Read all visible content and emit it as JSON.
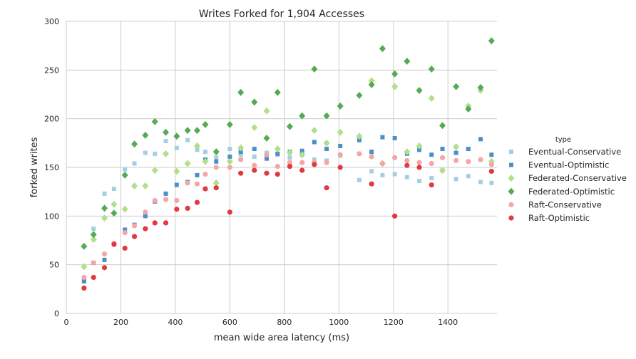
{
  "chart_data": {
    "type": "scatter",
    "title": "Writes Forked for 1,904 Accesses",
    "xlabel": "mean wide area latency (ms)",
    "ylabel": "forked writes",
    "xlim": [
      0,
      1580
    ],
    "ylim": [
      0,
      300
    ],
    "xticks": [
      0,
      200,
      400,
      600,
      800,
      1000,
      1200,
      1400
    ],
    "yticks": [
      0,
      50,
      100,
      150,
      200,
      250,
      300
    ],
    "grid": true,
    "legend_title": "type",
    "legend_position": "right",
    "series": [
      {
        "name": "Eventual-Conservative",
        "marker": "square",
        "color": "#a6cee3",
        "points": [
          [
            65,
            35
          ],
          [
            100,
            87
          ],
          [
            140,
            123
          ],
          [
            175,
            128
          ],
          [
            215,
            148
          ],
          [
            250,
            154
          ],
          [
            290,
            165
          ],
          [
            325,
            164
          ],
          [
            365,
            177
          ],
          [
            405,
            170
          ],
          [
            445,
            178
          ],
          [
            480,
            168
          ],
          [
            510,
            166
          ],
          [
            550,
            160
          ],
          [
            600,
            169
          ],
          [
            640,
            163
          ],
          [
            690,
            161
          ],
          [
            735,
            165
          ],
          [
            775,
            163
          ],
          [
            820,
            160
          ],
          [
            865,
            163
          ],
          [
            910,
            158
          ],
          [
            955,
            157
          ],
          [
            1005,
            162
          ],
          [
            1075,
            137
          ],
          [
            1120,
            146
          ],
          [
            1160,
            142
          ],
          [
            1205,
            143
          ],
          [
            1250,
            140
          ],
          [
            1295,
            136
          ],
          [
            1340,
            139
          ],
          [
            1380,
            147
          ],
          [
            1430,
            138
          ],
          [
            1475,
            141
          ],
          [
            1520,
            135
          ],
          [
            1560,
            134
          ]
        ]
      },
      {
        "name": "Eventual-Optimistic",
        "marker": "square",
        "color": "#4a8fc7",
        "points": [
          [
            65,
            33
          ],
          [
            100,
            52
          ],
          [
            140,
            55
          ],
          [
            175,
            71
          ],
          [
            215,
            86
          ],
          [
            250,
            91
          ],
          [
            290,
            100
          ],
          [
            325,
            115
          ],
          [
            365,
            123
          ],
          [
            405,
            132
          ],
          [
            445,
            135
          ],
          [
            480,
            142
          ],
          [
            510,
            158
          ],
          [
            550,
            156
          ],
          [
            600,
            161
          ],
          [
            640,
            166
          ],
          [
            690,
            169
          ],
          [
            735,
            159
          ],
          [
            775,
            164
          ],
          [
            820,
            166
          ],
          [
            865,
            167
          ],
          [
            910,
            176
          ],
          [
            955,
            169
          ],
          [
            1005,
            172
          ],
          [
            1075,
            178
          ],
          [
            1120,
            166
          ],
          [
            1160,
            181
          ],
          [
            1205,
            180
          ],
          [
            1250,
            164
          ],
          [
            1295,
            168
          ],
          [
            1340,
            163
          ],
          [
            1380,
            169
          ],
          [
            1430,
            165
          ],
          [
            1475,
            169
          ],
          [
            1520,
            179
          ],
          [
            1560,
            163
          ]
        ]
      },
      {
        "name": "Federated-Conservative",
        "marker": "diamond",
        "color": "#b2df8a",
        "points": [
          [
            65,
            48
          ],
          [
            100,
            76
          ],
          [
            140,
            98
          ],
          [
            175,
            112
          ],
          [
            215,
            107
          ],
          [
            250,
            131
          ],
          [
            290,
            131
          ],
          [
            325,
            147
          ],
          [
            365,
            164
          ],
          [
            405,
            146
          ],
          [
            445,
            154
          ],
          [
            480,
            172
          ],
          [
            510,
            156
          ],
          [
            550,
            134
          ],
          [
            600,
            156
          ],
          [
            640,
            170
          ],
          [
            690,
            191
          ],
          [
            735,
            208
          ],
          [
            775,
            169
          ],
          [
            820,
            165
          ],
          [
            865,
            163
          ],
          [
            910,
            188
          ],
          [
            955,
            175
          ],
          [
            1005,
            186
          ],
          [
            1075,
            182
          ],
          [
            1120,
            239
          ],
          [
            1160,
            154
          ],
          [
            1205,
            233
          ],
          [
            1250,
            166
          ],
          [
            1295,
            172
          ],
          [
            1340,
            221
          ],
          [
            1380,
            147
          ],
          [
            1430,
            171
          ],
          [
            1475,
            213
          ],
          [
            1520,
            229
          ],
          [
            1560,
            156
          ]
        ]
      },
      {
        "name": "Federated-Optimistic",
        "marker": "diamond",
        "color": "#55aa55",
        "points": [
          [
            65,
            69
          ],
          [
            100,
            81
          ],
          [
            140,
            108
          ],
          [
            175,
            103
          ],
          [
            215,
            142
          ],
          [
            250,
            174
          ],
          [
            290,
            183
          ],
          [
            325,
            197
          ],
          [
            365,
            186
          ],
          [
            405,
            182
          ],
          [
            445,
            188
          ],
          [
            480,
            188
          ],
          [
            510,
            194
          ],
          [
            550,
            166
          ],
          [
            600,
            194
          ],
          [
            640,
            227
          ],
          [
            690,
            217
          ],
          [
            735,
            180
          ],
          [
            775,
            227
          ],
          [
            820,
            192
          ],
          [
            865,
            203
          ],
          [
            910,
            251
          ],
          [
            955,
            203
          ],
          [
            1005,
            213
          ],
          [
            1075,
            224
          ],
          [
            1120,
            235
          ],
          [
            1160,
            272
          ],
          [
            1205,
            246
          ],
          [
            1250,
            259
          ],
          [
            1295,
            229
          ],
          [
            1340,
            251
          ],
          [
            1380,
            193
          ],
          [
            1430,
            233
          ],
          [
            1475,
            210
          ],
          [
            1520,
            232
          ],
          [
            1560,
            280
          ]
        ]
      },
      {
        "name": "Raft-Conservative",
        "marker": "circle",
        "color": "#f4a6a6",
        "points": [
          [
            65,
            37
          ],
          [
            100,
            52
          ],
          [
            140,
            61
          ],
          [
            175,
            72
          ],
          [
            215,
            83
          ],
          [
            250,
            90
          ],
          [
            290,
            104
          ],
          [
            325,
            116
          ],
          [
            365,
            117
          ],
          [
            405,
            116
          ],
          [
            445,
            134
          ],
          [
            480,
            133
          ],
          [
            510,
            143
          ],
          [
            550,
            150
          ],
          [
            600,
            150
          ],
          [
            640,
            158
          ],
          [
            690,
            152
          ],
          [
            735,
            163
          ],
          [
            775,
            151
          ],
          [
            820,
            155
          ],
          [
            865,
            155
          ],
          [
            910,
            155
          ],
          [
            955,
            155
          ],
          [
            1005,
            163
          ],
          [
            1075,
            164
          ],
          [
            1120,
            161
          ],
          [
            1160,
            154
          ],
          [
            1205,
            160
          ],
          [
            1250,
            157
          ],
          [
            1295,
            155
          ],
          [
            1340,
            154
          ],
          [
            1380,
            160
          ],
          [
            1430,
            157
          ],
          [
            1475,
            156
          ],
          [
            1520,
            158
          ],
          [
            1560,
            153
          ]
        ]
      },
      {
        "name": "Raft-Optimistic",
        "marker": "circle",
        "color": "#e0393e",
        "points": [
          [
            65,
            26
          ],
          [
            100,
            37
          ],
          [
            140,
            47
          ],
          [
            175,
            71
          ],
          [
            215,
            67
          ],
          [
            250,
            79
          ],
          [
            290,
            87
          ],
          [
            325,
            93
          ],
          [
            365,
            93
          ],
          [
            405,
            107
          ],
          [
            445,
            108
          ],
          [
            480,
            114
          ],
          [
            510,
            128
          ],
          [
            550,
            129
          ],
          [
            600,
            104
          ],
          [
            640,
            144
          ],
          [
            690,
            147
          ],
          [
            735,
            144
          ],
          [
            775,
            143
          ],
          [
            820,
            151
          ],
          [
            865,
            147
          ],
          [
            910,
            153
          ],
          [
            955,
            129
          ],
          [
            1005,
            150
          ],
          [
            1120,
            133
          ],
          [
            1205,
            100
          ],
          [
            1250,
            152
          ],
          [
            1295,
            150
          ],
          [
            1340,
            132
          ],
          [
            1560,
            146
          ]
        ]
      }
    ]
  }
}
